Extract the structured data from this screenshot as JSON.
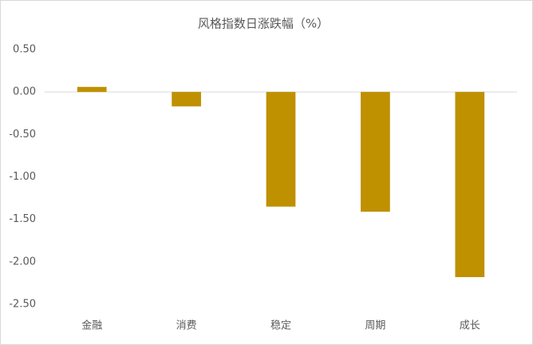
{
  "chart_data": {
    "type": "bar",
    "title": "风格指数日涨跌幅（%）",
    "categories": [
      "金融",
      "消费",
      "稳定",
      "周期",
      "成长"
    ],
    "values": [
      0.06,
      -0.17,
      -1.35,
      -1.41,
      -2.18
    ],
    "color": "#bf9000",
    "ylim": [
      -2.5,
      0.5
    ],
    "yticks": [
      {
        "value": 0.5,
        "label": "0.50"
      },
      {
        "value": 0,
        "label": "0.00"
      },
      {
        "value": -0.5,
        "label": "-0.50"
      },
      {
        "value": -1,
        "label": "-1.00"
      },
      {
        "value": -1.5,
        "label": "-1.50"
      },
      {
        "value": -2,
        "label": "-2.00"
      },
      {
        "value": -2.5,
        "label": "-2.50"
      }
    ],
    "grid": false
  }
}
